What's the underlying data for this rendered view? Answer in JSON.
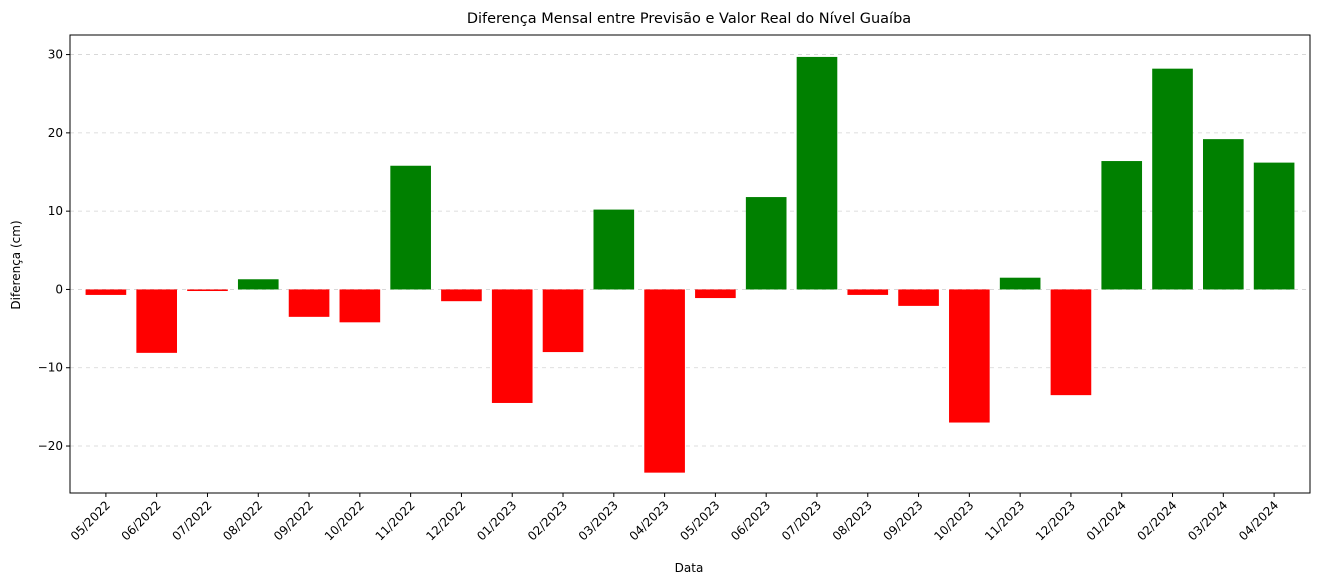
{
  "chart_data": {
    "type": "bar",
    "title": "Diferença Mensal entre Previsão e Valor Real do Nível Guaíba",
    "xlabel": "Data",
    "ylabel": "Diferença (cm)",
    "ylim": [
      -26,
      32.5
    ],
    "yticks": [
      -20,
      -10,
      0,
      10,
      20,
      30
    ],
    "ytick_labels": [
      "−20",
      "−10",
      "0",
      "10",
      "20",
      "30"
    ],
    "grid": "y-dashed",
    "colors": {
      "positive": "#008000",
      "negative": "#ff0000"
    },
    "categories": [
      "05/2022",
      "06/2022",
      "07/2022",
      "08/2022",
      "09/2022",
      "10/2022",
      "11/2022",
      "12/2022",
      "01/2023",
      "02/2023",
      "03/2023",
      "04/2023",
      "05/2023",
      "06/2023",
      "07/2023",
      "08/2023",
      "09/2023",
      "10/2023",
      "11/2023",
      "12/2023",
      "01/2024",
      "02/2024",
      "03/2024",
      "04/2024"
    ],
    "values": [
      -0.7,
      -8.1,
      -0.2,
      1.3,
      -3.5,
      -4.2,
      15.8,
      -1.5,
      -14.5,
      -8.0,
      10.2,
      -23.4,
      -1.1,
      11.8,
      29.7,
      -0.7,
      -2.1,
      -17.0,
      1.5,
      -13.5,
      16.4,
      28.2,
      19.2,
      16.2
    ]
  }
}
